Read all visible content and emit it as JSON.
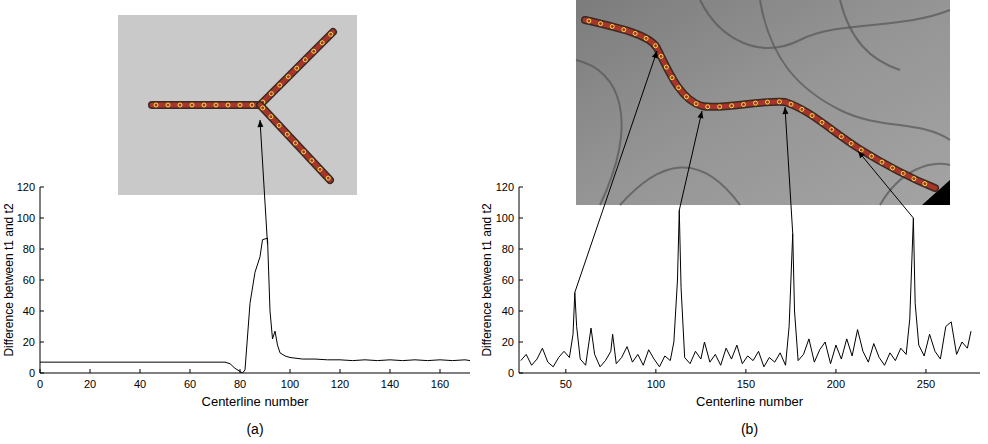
{
  "chart_data": [
    {
      "type": "line",
      "title": "(a)",
      "x_label": "Centerline number",
      "y_label": "Difference between t1 and t2",
      "color": "#000000",
      "x": [
        0,
        74,
        76,
        78,
        80,
        81,
        82,
        84,
        86,
        88,
        89,
        91,
        92,
        93,
        94,
        95,
        96,
        98,
        100,
        105,
        110,
        115,
        120,
        125,
        130,
        135,
        140,
        145,
        150,
        155,
        160,
        165,
        170,
        172
      ],
      "values": [
        7,
        7,
        6,
        3,
        1,
        0,
        2,
        45,
        65,
        75,
        86,
        87,
        40,
        22,
        27,
        18,
        13,
        11,
        10,
        9,
        9,
        8.5,
        8.5,
        8,
        8.5,
        8,
        8.5,
        8,
        8.5,
        8,
        8.5,
        8,
        8.5,
        8
      ],
      "xlim": [
        0,
        172
      ],
      "xticks": [
        0,
        20,
        40,
        60,
        80,
        100,
        120,
        140,
        160
      ],
      "ylim": [
        0,
        120
      ],
      "yticks": [
        0,
        20,
        40,
        60,
        80,
        100,
        120
      ]
    },
    {
      "type": "line",
      "title": "(b)",
      "x_label": "Centerline number",
      "y_label": "Difference between t1 and t2",
      "color": "#000000",
      "x": [
        25,
        28,
        31,
        34,
        37,
        40,
        43,
        46,
        49,
        52,
        54,
        55,
        56,
        58,
        61,
        64,
        66,
        69,
        72,
        75,
        76,
        78,
        81,
        84,
        87,
        90,
        93,
        96,
        99,
        102,
        105,
        108,
        110,
        112,
        113,
        114,
        116,
        119,
        122,
        125,
        127,
        130,
        133,
        136,
        139,
        142,
        145,
        148,
        151,
        154,
        157,
        160,
        163,
        166,
        169,
        172,
        174,
        176,
        177,
        179,
        182,
        185,
        188,
        191,
        194,
        197,
        200,
        203,
        206,
        209,
        212,
        215,
        218,
        221,
        224,
        227,
        230,
        233,
        236,
        239,
        241,
        243,
        244,
        246,
        249,
        252,
        255,
        258,
        261,
        264,
        267,
        270,
        273,
        275
      ],
      "values": [
        8,
        12,
        5,
        9,
        16,
        7,
        4,
        10,
        14,
        10,
        25,
        52,
        30,
        9,
        5,
        29,
        12,
        4,
        8,
        14,
        25,
        6,
        10,
        17,
        7,
        12,
        5,
        15,
        9,
        4,
        11,
        8,
        20,
        60,
        105,
        55,
        10,
        6,
        14,
        9,
        20,
        7,
        12,
        5,
        16,
        9,
        18,
        6,
        11,
        8,
        14,
        4,
        10,
        7,
        13,
        5,
        30,
        90,
        40,
        8,
        12,
        22,
        7,
        15,
        20,
        6,
        18,
        9,
        22,
        11,
        28,
        14,
        7,
        19,
        10,
        5,
        13,
        8,
        16,
        12,
        35,
        100,
        45,
        18,
        11,
        25,
        14,
        9,
        30,
        33,
        12,
        20,
        16,
        27
      ],
      "xlim": [
        24,
        280
      ],
      "xticks": [
        50,
        100,
        150,
        200,
        250
      ],
      "ylim": [
        0,
        120
      ],
      "yticks": [
        0,
        20,
        40,
        60,
        80,
        100,
        120
      ]
    }
  ]
}
